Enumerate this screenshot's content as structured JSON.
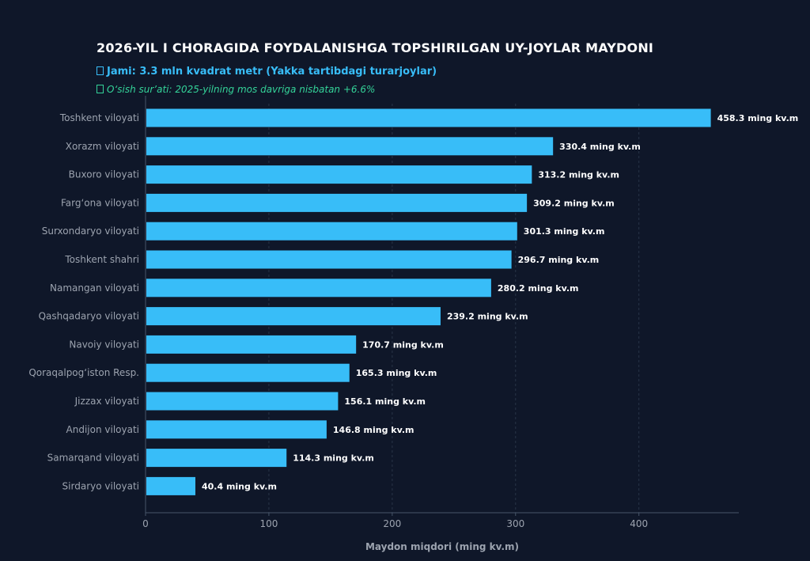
{
  "chart_data": {
    "type": "bar",
    "orientation": "horizontal",
    "title": "2026-YIL I CHORAGIDA FOYDALANISHGA TOPSHIRILGAN UY-JOYLAR MAYDONI",
    "subtitle": "Jami: 3.3 mln kvadrat metr (Yakka tartibdagi turarjoylar)",
    "subtitle2": "O‘sish sur’ati: 2025-yilning mos davriga nisbatan +6.6%",
    "xlabel": "Maydon miqdori (ming kv.m)",
    "ylabel": "",
    "value_suffix": " ming kv.m",
    "xlim": [
      0,
      481
    ],
    "xticks": [
      0,
      100,
      200,
      300,
      400
    ],
    "grid": "vertical dashed",
    "categories": [
      "Toshkent viloyati",
      "Xorazm viloyati",
      "Buxoro viloyati",
      "Farg‘ona viloyati",
      "Surxondaryo viloyati",
      "Toshkent shahri",
      "Namangan viloyati",
      "Qashqadaryo viloyati",
      "Navoiy viloyati",
      "Qoraqalpog‘iston Resp.",
      "Jizzax viloyati",
      "Andijon viloyati",
      "Samarqand viloyati",
      "Sirdaryo viloyati"
    ],
    "values": [
      458.3,
      330.4,
      313.2,
      309.2,
      301.3,
      296.7,
      280.2,
      239.2,
      170.7,
      165.3,
      156.1,
      146.8,
      114.3,
      40.4
    ],
    "colors": {
      "bar": "#38bdf8",
      "background": "#0f1729",
      "title": "#ffffff",
      "subtitle": "#38bdf8",
      "subtitle2": "#34d399",
      "grid": "#334155",
      "axis": "#475569"
    }
  }
}
